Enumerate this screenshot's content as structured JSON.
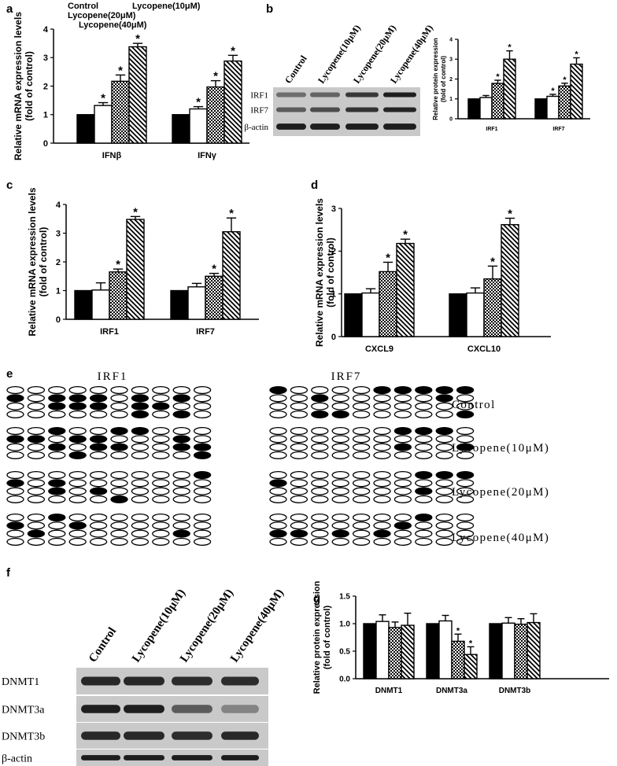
{
  "panels": {
    "a": "a",
    "b": "b",
    "c": "c",
    "d": "d",
    "e": "e",
    "f": "f",
    "g": "g"
  },
  "legend": [
    "Control",
    "Lycopene(10μM)",
    "Lycopene(20μM)",
    "Lycopene(40μM)"
  ],
  "significance_mark": "*",
  "colors": {
    "ink": "#000000",
    "background": "#ffffff"
  },
  "chart_data": [
    {
      "panel": "a",
      "type": "bar",
      "ylabel": [
        "Relative mRNA expression levels",
        "(fold of control)"
      ],
      "ylim": [
        0,
        4
      ],
      "yticks": [
        "0",
        "1",
        "2",
        "3",
        "4"
      ],
      "categories": [
        "IFNβ",
        "IFNγ"
      ],
      "series": [
        {
          "name": "Control",
          "values": [
            1.0,
            1.0
          ],
          "errors": [
            0,
            0
          ],
          "sig": [
            false,
            false
          ]
        },
        {
          "name": "Lycopene(10μM)",
          "values": [
            1.32,
            1.2
          ],
          "errors": [
            0.1,
            0.08
          ],
          "sig": [
            true,
            true
          ]
        },
        {
          "name": "Lycopene(20μM)",
          "values": [
            2.17,
            1.97
          ],
          "errors": [
            0.22,
            0.22
          ],
          "sig": [
            true,
            true
          ]
        },
        {
          "name": "Lycopene(40μM)",
          "values": [
            3.38,
            2.88
          ],
          "errors": [
            0.12,
            0.2
          ],
          "sig": [
            true,
            true
          ]
        }
      ]
    },
    {
      "panel": "b",
      "type": "bar",
      "ylabel": [
        "Relative protein expression",
        "(fold of control)"
      ],
      "ylim": [
        0,
        4
      ],
      "yticks": [
        "0",
        "1",
        "2",
        "3",
        "4"
      ],
      "categories": [
        "IRF1",
        "IRF7"
      ],
      "series": [
        {
          "name": "Control",
          "values": [
            1.0,
            1.0
          ],
          "errors": [
            0,
            0
          ],
          "sig": [
            false,
            false
          ]
        },
        {
          "name": "Lycopene(10μM)",
          "values": [
            1.07,
            1.13
          ],
          "errors": [
            0.1,
            0.1
          ],
          "sig": [
            false,
            true
          ]
        },
        {
          "name": "Lycopene(20μM)",
          "values": [
            1.78,
            1.65
          ],
          "errors": [
            0.16,
            0.14
          ],
          "sig": [
            true,
            true
          ]
        },
        {
          "name": "Lycopene(40μM)",
          "values": [
            3.0,
            2.75
          ],
          "errors": [
            0.42,
            0.32
          ],
          "sig": [
            true,
            true
          ]
        }
      ]
    },
    {
      "panel": "c",
      "type": "bar",
      "ylabel": [
        "Relative mRNA expression levels",
        "(fold of control)"
      ],
      "ylim": [
        0,
        4
      ],
      "yticks": [
        "0",
        "1",
        "2",
        "3",
        "4"
      ],
      "categories": [
        "IRF1",
        "IRF7"
      ],
      "series": [
        {
          "name": "Control",
          "values": [
            1.0,
            1.0
          ],
          "errors": [
            0,
            0
          ],
          "sig": [
            false,
            false
          ]
        },
        {
          "name": "Lycopene(10μM)",
          "values": [
            1.02,
            1.13
          ],
          "errors": [
            0.25,
            0.12
          ],
          "sig": [
            false,
            false
          ]
        },
        {
          "name": "Lycopene(20μM)",
          "values": [
            1.65,
            1.5
          ],
          "errors": [
            0.1,
            0.1
          ],
          "sig": [
            true,
            true
          ]
        },
        {
          "name": "Lycopene(40μM)",
          "values": [
            3.48,
            3.05
          ],
          "errors": [
            0.1,
            0.48
          ],
          "sig": [
            true,
            true
          ]
        }
      ]
    },
    {
      "panel": "d",
      "type": "bar",
      "ylabel": [
        "Relative mRNA expression levels",
        "(fold of control)"
      ],
      "ylim": [
        0,
        3
      ],
      "yticks": [
        "0",
        "1",
        "2",
        "3"
      ],
      "categories": [
        "CXCL9",
        "CXCL10"
      ],
      "series": [
        {
          "name": "Control",
          "values": [
            1.0,
            1.0
          ],
          "errors": [
            0,
            0
          ],
          "sig": [
            false,
            false
          ]
        },
        {
          "name": "Lycopene(10μM)",
          "values": [
            1.02,
            1.02
          ],
          "errors": [
            0.1,
            0.12
          ],
          "sig": [
            false,
            false
          ]
        },
        {
          "name": "Lycopene(20μM)",
          "values": [
            1.52,
            1.35
          ],
          "errors": [
            0.22,
            0.3
          ],
          "sig": [
            true,
            true
          ]
        },
        {
          "name": "Lycopene(40μM)",
          "values": [
            2.18,
            2.62
          ],
          "errors": [
            0.1,
            0.15
          ],
          "sig": [
            true,
            true
          ]
        }
      ]
    },
    {
      "panel": "g",
      "type": "bar",
      "ylabel": [
        "Relative protein expression",
        "(fold of control)"
      ],
      "ylim": [
        0,
        1.5
      ],
      "yticks": [
        "0.0",
        "0.5",
        "1.0",
        "1.5"
      ],
      "categories": [
        "DNMT1",
        "DNMT3a",
        "DNMT3b"
      ],
      "series": [
        {
          "name": "Control",
          "values": [
            1.0,
            1.0,
            1.0
          ],
          "errors": [
            0,
            0,
            0
          ],
          "sig": [
            false,
            false,
            false
          ]
        },
        {
          "name": "Lycopene(10μM)",
          "values": [
            1.04,
            1.05,
            1.01
          ],
          "errors": [
            0.12,
            0.1,
            0.1
          ],
          "sig": [
            false,
            false,
            false
          ]
        },
        {
          "name": "Lycopene(20μM)",
          "values": [
            0.93,
            0.68,
            0.99
          ],
          "errors": [
            0.1,
            0.13,
            0.1
          ],
          "sig": [
            false,
            true,
            false
          ]
        },
        {
          "name": "Lycopene(40μM)",
          "values": [
            0.97,
            0.44,
            1.02
          ],
          "errors": [
            0.22,
            0.14,
            0.16
          ],
          "sig": [
            false,
            true,
            false
          ]
        }
      ]
    }
  ],
  "blots": {
    "b": {
      "lanes": [
        "Control",
        "Lycopene(10μM)",
        "Lycopene(20μM)",
        "Lycopene(40μM)"
      ],
      "rows": [
        {
          "label": "IRF1",
          "intensities": [
            0.45,
            0.5,
            0.72,
            0.85
          ]
        },
        {
          "label": "IRF7",
          "intensities": [
            0.55,
            0.62,
            0.75,
            0.82
          ]
        },
        {
          "label": "β-actin",
          "intensities": [
            0.85,
            0.85,
            0.85,
            0.85
          ]
        }
      ]
    },
    "f": {
      "lanes": [
        "Control",
        "Lycopene(10μM)",
        "Lycopene(20μM)",
        "Lycopene(40μM)"
      ],
      "rows": [
        {
          "label": "DNMT1",
          "intensities": [
            0.8,
            0.8,
            0.78,
            0.78
          ]
        },
        {
          "label": "DNMT3a",
          "intensities": [
            0.85,
            0.85,
            0.55,
            0.35
          ]
        },
        {
          "label": "DNMT3b",
          "intensities": [
            0.8,
            0.8,
            0.78,
            0.8
          ]
        },
        {
          "label": "β-actin",
          "intensities": [
            0.85,
            0.85,
            0.85,
            0.85
          ]
        }
      ]
    }
  },
  "methylation": {
    "genes": [
      "IRF1",
      "IRF7"
    ],
    "conditions": [
      "Control",
      "Lycopene(10μM)",
      "Lycopene(20μM)",
      "Lycopene(40μM)"
    ],
    "IRF1": [
      [
        "0000000000",
        "1011101010",
        "0011101100",
        "0000001010"
      ],
      [
        "0010011000",
        "1101100010",
        "0010110011",
        "0001000001"
      ],
      [
        "0000000001",
        "1010000000",
        "0010100000",
        "0000010000"
      ],
      [
        "0010000000",
        "1001000000",
        "0100000010",
        "0000000000"
      ]
    ],
    "IRF7": [
      [
        "1000011111",
        "0010000010",
        "0000000000",
        "0011000001"
      ],
      [
        "0000001110",
        "0000000000",
        "0000001001",
        "0000000000"
      ],
      [
        "0000000111",
        "1000000000",
        "0000000100",
        "0000000000"
      ],
      [
        "0000000100",
        "0000001000",
        "1101010000",
        "0000000000"
      ]
    ]
  }
}
